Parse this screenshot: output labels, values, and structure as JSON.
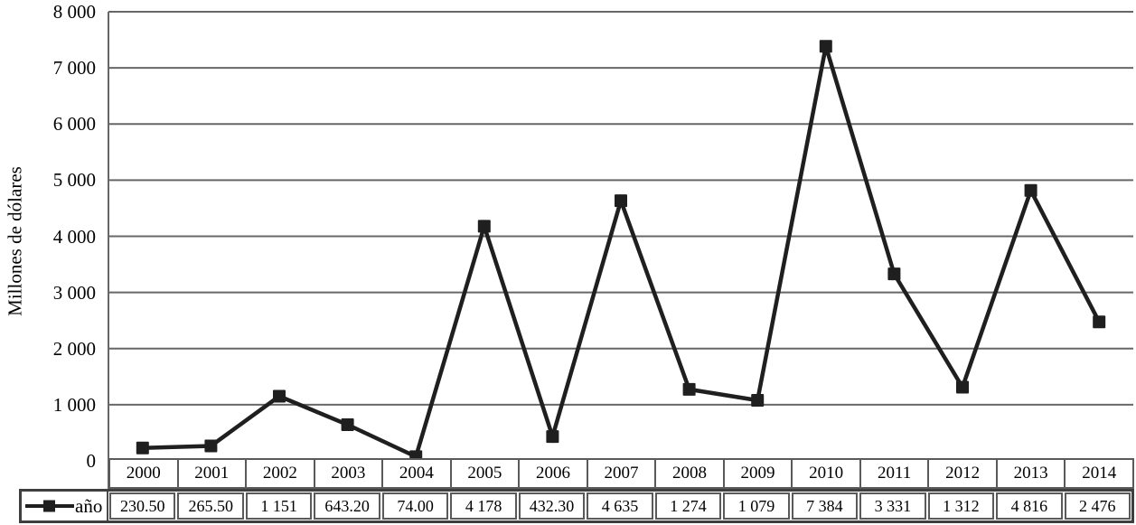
{
  "chart_data": {
    "type": "line",
    "title": "",
    "xlabel": "",
    "ylabel": "Millones de dólares",
    "series_label": "año",
    "categories": [
      "2000",
      "2001",
      "2002",
      "2003",
      "2004",
      "2005",
      "2006",
      "2007",
      "2008",
      "2009",
      "2010",
      "2011",
      "2012",
      "2013",
      "2014"
    ],
    "values": [
      230.5,
      265.5,
      1151,
      643.2,
      74.0,
      4178,
      432.3,
      4635,
      1274,
      1079,
      7384,
      3331,
      1312,
      4816,
      2476
    ],
    "value_labels": [
      "230.50",
      "265.50",
      "1 151",
      "643.20",
      "74.00",
      "4 178",
      "432.30",
      "4 635",
      "1 274",
      "1 079",
      "7 384",
      "3 331",
      "1 312",
      "4 816",
      "2 476"
    ],
    "ylim": [
      0,
      8000
    ],
    "ytick_values": [
      0,
      1000,
      2000,
      3000,
      4000,
      5000,
      6000,
      7000,
      8000
    ],
    "ytick_labels": [
      "0",
      "1 000",
      "2 000",
      "3 000",
      "4 000",
      "5 000",
      "6 000",
      "7 000",
      "8 000"
    ],
    "grid": true,
    "legend_position": "bottom-left",
    "marker": "square",
    "line_color": "#1f1f1f",
    "grid_color": "#676767",
    "cell_border_color": "#5a5a5a"
  }
}
